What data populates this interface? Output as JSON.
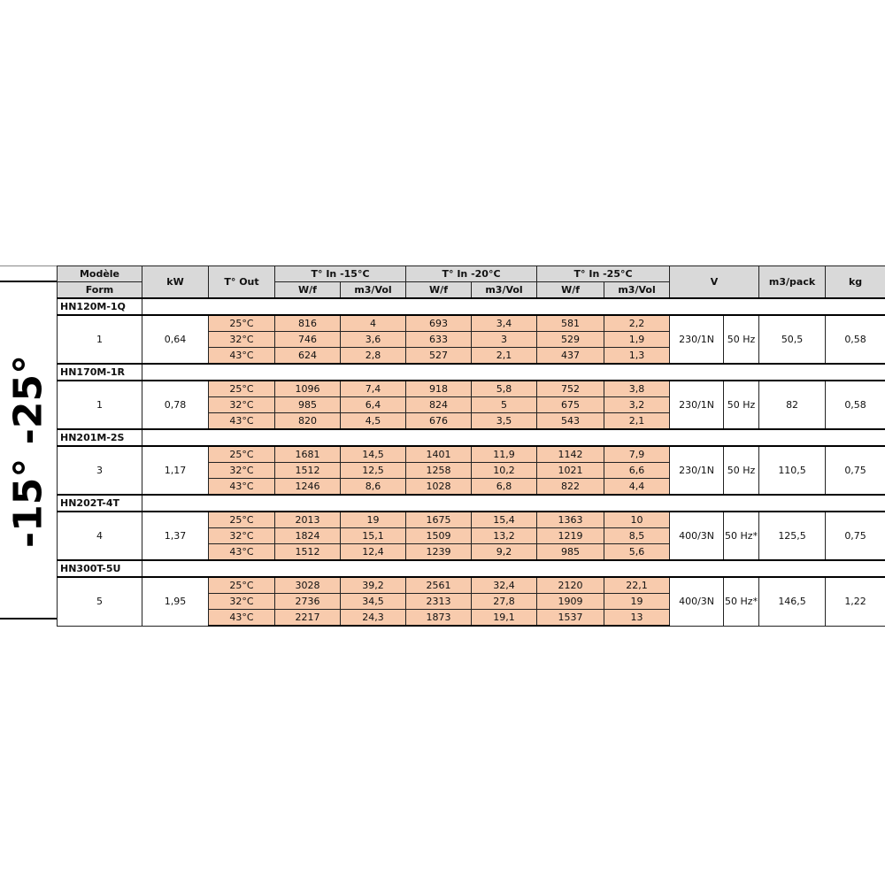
{
  "side_label": "-15° -25°",
  "header": {
    "model": "Modèle",
    "form": "Form",
    "kw": "kW",
    "tout": "T° Out",
    "tin15": "T° In -15°C",
    "tin20": "T° In -20°C",
    "tin25": "T° In -25°C",
    "wf": "W/f",
    "m3vol": "m3/Vol",
    "v": "V",
    "m3pack": "m3/pack",
    "kg": "kg"
  },
  "colors": {
    "header_bg": "#d9d9d9",
    "data_bg": "#f8cbad"
  },
  "groups": [
    {
      "model": "HN120M-1Q",
      "form": "1",
      "kw": "0,64",
      "v": "230/1N",
      "hz": "50 Hz",
      "m3pack": "50,5",
      "kg": "0,58",
      "rows": [
        [
          "25°C",
          "816",
          "4",
          "693",
          "3,4",
          "581",
          "2,2"
        ],
        [
          "32°C",
          "746",
          "3,6",
          "633",
          "3",
          "529",
          "1,9"
        ],
        [
          "43°C",
          "624",
          "2,8",
          "527",
          "2,1",
          "437",
          "1,3"
        ]
      ]
    },
    {
      "model": "HN170M-1R",
      "form": "1",
      "kw": "0,78",
      "v": "230/1N",
      "hz": "50 Hz",
      "m3pack": "82",
      "kg": "0,58",
      "rows": [
        [
          "25°C",
          "1096",
          "7,4",
          "918",
          "5,8",
          "752",
          "3,8"
        ],
        [
          "32°C",
          "985",
          "6,4",
          "824",
          "5",
          "675",
          "3,2"
        ],
        [
          "43°C",
          "820",
          "4,5",
          "676",
          "3,5",
          "543",
          "2,1"
        ]
      ]
    },
    {
      "model": "HN201M-2S",
      "form": "3",
      "kw": "1,17",
      "v": "230/1N",
      "hz": "50 Hz",
      "m3pack": "110,5",
      "kg": "0,75",
      "rows": [
        [
          "25°C",
          "1681",
          "14,5",
          "1401",
          "11,9",
          "1142",
          "7,9"
        ],
        [
          "32°C",
          "1512",
          "12,5",
          "1258",
          "10,2",
          "1021",
          "6,6"
        ],
        [
          "43°C",
          "1246",
          "8,6",
          "1028",
          "6,8",
          "822",
          "4,4"
        ]
      ]
    },
    {
      "model": "HN202T-4T",
      "form": "4",
      "kw": "1,37",
      "v": "400/3N",
      "hz": "50 Hz*",
      "m3pack": "125,5",
      "kg": "0,75",
      "rows": [
        [
          "25°C",
          "2013",
          "19",
          "1675",
          "15,4",
          "1363",
          "10"
        ],
        [
          "32°C",
          "1824",
          "15,1",
          "1509",
          "13,2",
          "1219",
          "8,5"
        ],
        [
          "43°C",
          "1512",
          "12,4",
          "1239",
          "9,2",
          "985",
          "5,6"
        ]
      ]
    },
    {
      "model": "HN300T-5U",
      "form": "5",
      "kw": "1,95",
      "v": "400/3N",
      "hz": "50 Hz*",
      "m3pack": "146,5",
      "kg": "1,22",
      "rows": [
        [
          "25°C",
          "3028",
          "39,2",
          "2561",
          "32,4",
          "2120",
          "22,1"
        ],
        [
          "32°C",
          "2736",
          "34,5",
          "2313",
          "27,8",
          "1909",
          "19"
        ],
        [
          "43°C",
          "2217",
          "24,3",
          "1873",
          "19,1",
          "1537",
          "13"
        ]
      ]
    }
  ]
}
